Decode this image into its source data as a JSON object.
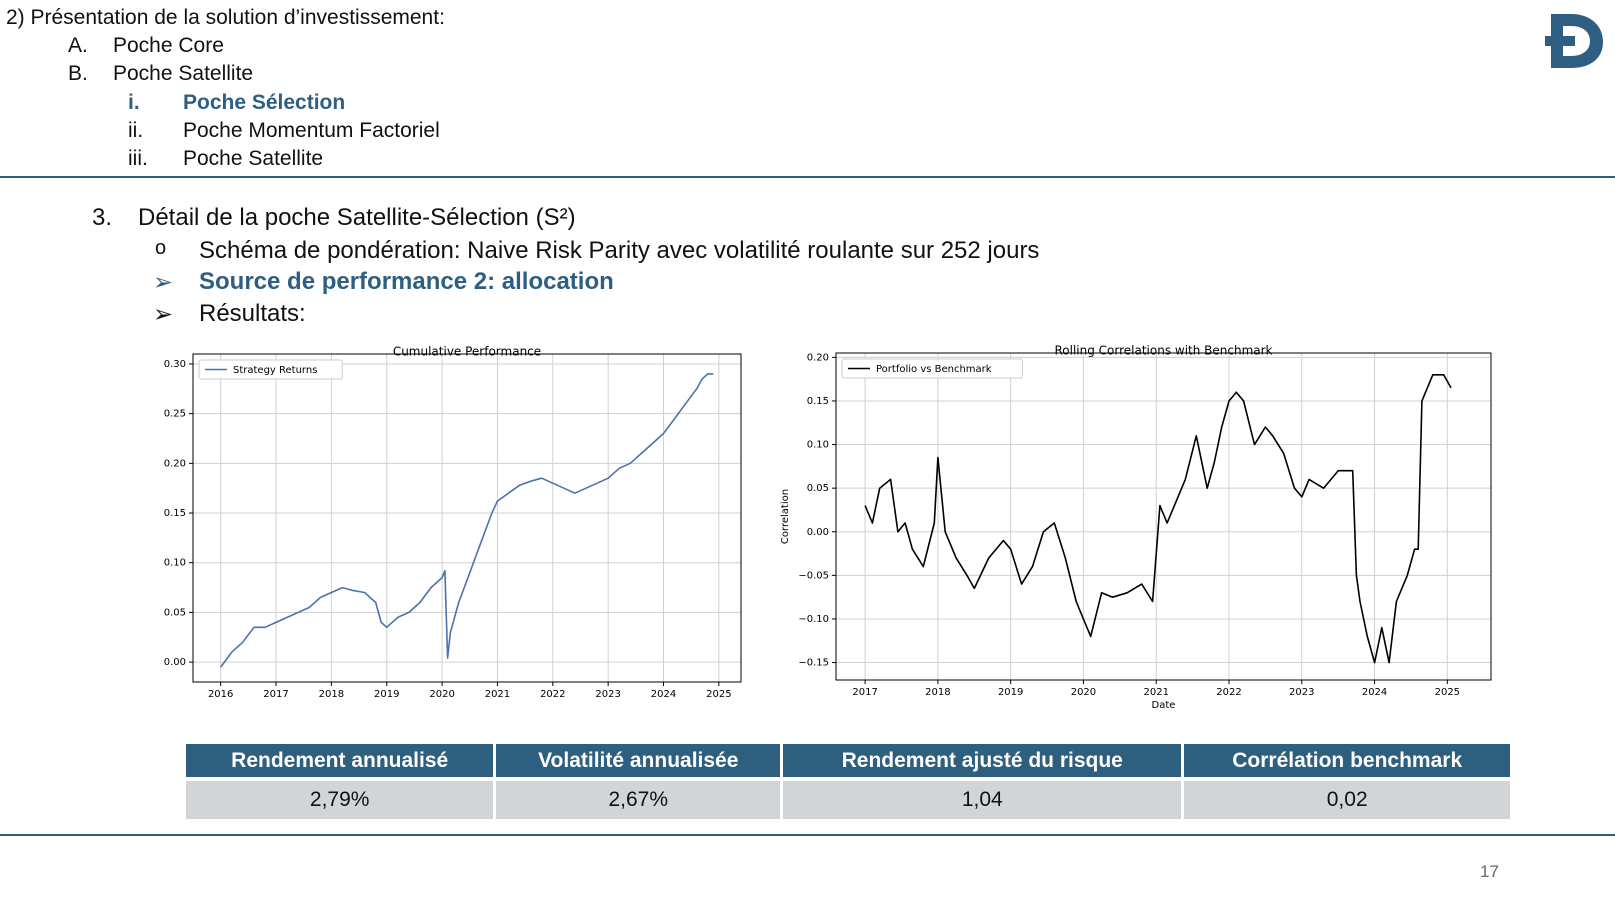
{
  "outline": {
    "title": "2) Présentation de la solution d’investissement:",
    "items": [
      {
        "num": "A.",
        "label": "Poche Core"
      },
      {
        "num": "B.",
        "label": "Poche Satellite"
      }
    ],
    "subitems": [
      {
        "num": "i.",
        "label": "Poche Sélection",
        "active": true
      },
      {
        "num": "ii.",
        "label": "Poche Momentum Factoriel",
        "active": false
      },
      {
        "num": "iii.",
        "label": "Poche Satellite",
        "active": false
      }
    ]
  },
  "detail": {
    "num": "3.",
    "title": "Détail de la poche Satellite-Sélection (S²)",
    "bullets": [
      {
        "marker": "o",
        "text": "Schéma de pondération: Naive Risk Parity avec volatilité roulante sur 252 jours",
        "highlight": false
      },
      {
        "marker": "➢",
        "text": "Source de performance 2: allocation",
        "highlight": true
      },
      {
        "marker": "➢",
        "text": "Résultats:",
        "highlight": false
      }
    ]
  },
  "chart_data": [
    {
      "type": "line",
      "title": "Cumulative Performance",
      "xlabel": "",
      "ylabel": "",
      "xticks": [
        "2016",
        "2017",
        "2018",
        "2019",
        "2020",
        "2021",
        "2022",
        "2023",
        "2024",
        "2025"
      ],
      "yticks": [
        "0.00",
        "0.05",
        "0.10",
        "0.15",
        "0.20",
        "0.25",
        "0.30"
      ],
      "xlim": [
        2015.5,
        2025.4
      ],
      "ylim": [
        -0.02,
        0.31
      ],
      "grid": true,
      "legend_position": "upper-left",
      "series": [
        {
          "name": "Strategy Returns",
          "color": "#4c72b0",
          "x": [
            2016.0,
            2016.2,
            2016.4,
            2016.6,
            2016.8,
            2017.0,
            2017.2,
            2017.4,
            2017.6,
            2017.8,
            2018.0,
            2018.2,
            2018.4,
            2018.6,
            2018.8,
            2018.9,
            2019.0,
            2019.2,
            2019.4,
            2019.6,
            2019.8,
            2020.0,
            2020.05,
            2020.1,
            2020.15,
            2020.3,
            2020.5,
            2020.7,
            2020.9,
            2021.0,
            2021.2,
            2021.4,
            2021.6,
            2021.8,
            2022.0,
            2022.2,
            2022.4,
            2022.6,
            2022.8,
            2023.0,
            2023.2,
            2023.4,
            2023.6,
            2023.8,
            2024.0,
            2024.2,
            2024.4,
            2024.6,
            2024.7,
            2024.8,
            2024.9
          ],
          "y": [
            -0.005,
            0.01,
            0.02,
            0.035,
            0.035,
            0.04,
            0.045,
            0.05,
            0.055,
            0.065,
            0.07,
            0.075,
            0.072,
            0.07,
            0.06,
            0.04,
            0.035,
            0.045,
            0.05,
            0.06,
            0.075,
            0.085,
            0.092,
            0.004,
            0.03,
            0.06,
            0.09,
            0.12,
            0.15,
            0.162,
            0.17,
            0.178,
            0.182,
            0.185,
            0.18,
            0.175,
            0.17,
            0.175,
            0.18,
            0.185,
            0.195,
            0.2,
            0.21,
            0.22,
            0.23,
            0.245,
            0.26,
            0.275,
            0.285,
            0.29,
            0.29
          ]
        }
      ]
    },
    {
      "type": "line",
      "title": "Rolling Correlations with Benchmark",
      "xlabel": "Date",
      "ylabel": "Correlation",
      "xticks": [
        "2017",
        "2018",
        "2019",
        "2020",
        "2021",
        "2022",
        "2023",
        "2024",
        "2025"
      ],
      "yticks": [
        "−0.15",
        "−0.10",
        "−0.05",
        "0.00",
        "0.05",
        "0.10",
        "0.15",
        "0.20"
      ],
      "xlim": [
        2016.6,
        2025.6
      ],
      "ylim": [
        -0.17,
        0.205
      ],
      "grid": true,
      "legend_position": "upper-left",
      "series": [
        {
          "name": "Portfolio vs Benchmark",
          "color": "#000000",
          "x": [
            2017.0,
            2017.1,
            2017.2,
            2017.35,
            2017.45,
            2017.55,
            2017.65,
            2017.8,
            2017.95,
            2018.0,
            2018.1,
            2018.25,
            2018.4,
            2018.5,
            2018.7,
            2018.9,
            2019.0,
            2019.15,
            2019.3,
            2019.45,
            2019.6,
            2019.75,
            2019.9,
            2020.0,
            2020.1,
            2020.25,
            2020.4,
            2020.6,
            2020.8,
            2020.95,
            2021.05,
            2021.15,
            2021.25,
            2021.4,
            2021.55,
            2021.7,
            2021.8,
            2021.9,
            2022.0,
            2022.1,
            2022.2,
            2022.35,
            2022.5,
            2022.6,
            2022.75,
            2022.9,
            2023.0,
            2023.1,
            2023.3,
            2023.5,
            2023.7,
            2023.75,
            2023.8,
            2023.9,
            2024.0,
            2024.1,
            2024.2,
            2024.3,
            2024.45,
            2024.55,
            2024.6,
            2024.65,
            2024.8,
            2024.95,
            2025.05
          ],
          "y": [
            0.03,
            0.01,
            0.05,
            0.06,
            0.0,
            0.01,
            -0.02,
            -0.04,
            0.01,
            0.085,
            0.0,
            -0.03,
            -0.05,
            -0.065,
            -0.03,
            -0.01,
            -0.02,
            -0.06,
            -0.04,
            0.0,
            0.01,
            -0.03,
            -0.08,
            -0.1,
            -0.12,
            -0.07,
            -0.075,
            -0.07,
            -0.06,
            -0.08,
            0.03,
            0.01,
            0.03,
            0.06,
            0.11,
            0.05,
            0.08,
            0.12,
            0.15,
            0.16,
            0.15,
            0.1,
            0.12,
            0.11,
            0.09,
            0.05,
            0.04,
            0.06,
            0.05,
            0.07,
            0.07,
            -0.05,
            -0.08,
            -0.12,
            -0.15,
            -0.11,
            -0.15,
            -0.08,
            -0.05,
            -0.02,
            -0.02,
            0.15,
            0.18,
            0.18,
            0.165
          ]
        }
      ]
    }
  ],
  "stats": {
    "headers": [
      "Rendement annualisé",
      "Volatilité annualisée",
      "Rendement ajusté du risque",
      "Corrélation benchmark"
    ],
    "values": [
      "2,79%",
      "2,67%",
      "1,04",
      "0,02"
    ]
  },
  "page_number": "17",
  "colors": {
    "accent": "#2e5f83",
    "header_fill": "#2e5f7f",
    "cell_fill": "#d1d5d8",
    "rule": "#2f5d7c"
  }
}
